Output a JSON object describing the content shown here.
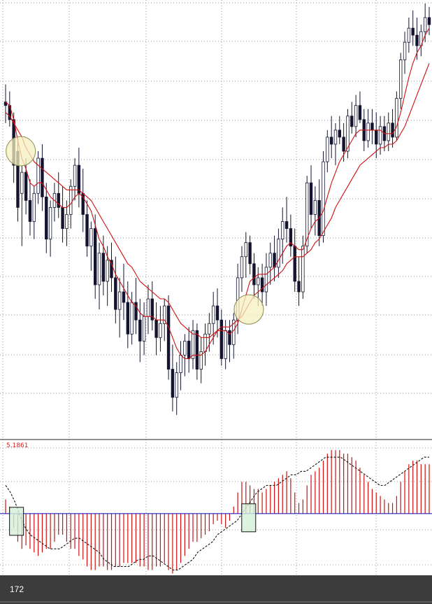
{
  "chart_data": [
    {
      "type": "candlestick",
      "panel": "price",
      "grid": true,
      "ylim": [
        0,
        125
      ],
      "colors": {
        "up": "#ffffff",
        "down": "#141430",
        "outline": "#141430",
        "ma_fast": "#d01010",
        "ma_slow": "#d01010",
        "highlight_fill": "#f6f0c0",
        "highlight_stroke": "#8a8a50"
      },
      "candles": [
        [
          96,
          101,
          90,
          95
        ],
        [
          95,
          99,
          89,
          91
        ],
        [
          91,
          93,
          73,
          78
        ],
        [
          82,
          86,
          62,
          66
        ],
        [
          70,
          78,
          55,
          76
        ],
        [
          76,
          80,
          64,
          68
        ],
        [
          68,
          74,
          58,
          62
        ],
        [
          62,
          72,
          57,
          70
        ],
        [
          70,
          82,
          67,
          80
        ],
        [
          80,
          84,
          65,
          69
        ],
        [
          69,
          73,
          53,
          57
        ],
        [
          57,
          68,
          52,
          66
        ],
        [
          66,
          73,
          62,
          70
        ],
        [
          70,
          76,
          63,
          66
        ],
        [
          66,
          72,
          56,
          60
        ],
        [
          60,
          68,
          55,
          64
        ],
        [
          64,
          74,
          60,
          72
        ],
        [
          72,
          80,
          68,
          78
        ],
        [
          78,
          83,
          66,
          70
        ],
        [
          70,
          77,
          59,
          64
        ],
        [
          64,
          68,
          52,
          55
        ],
        [
          55,
          62,
          48,
          60
        ],
        [
          60,
          64,
          40,
          44
        ],
        [
          44,
          56,
          37,
          53
        ],
        [
          53,
          58,
          41,
          45
        ],
        [
          45,
          55,
          38,
          51
        ],
        [
          51,
          56,
          42,
          46
        ],
        [
          46,
          52,
          33,
          37
        ],
        [
          37,
          46,
          29,
          42
        ],
        [
          42,
          50,
          34,
          39
        ],
        [
          39,
          45,
          26,
          30
        ],
        [
          30,
          42,
          27,
          39
        ],
        [
          39,
          46,
          30,
          34
        ],
        [
          34,
          40,
          22,
          28
        ],
        [
          28,
          39,
          24,
          35
        ],
        [
          35,
          44,
          30,
          40
        ],
        [
          40,
          45,
          31,
          34
        ],
        [
          34,
          39,
          24,
          29
        ],
        [
          29,
          38,
          25,
          33
        ],
        [
          33,
          40,
          28,
          38
        ],
        [
          38,
          41,
          17,
          20
        ],
        [
          20,
          27,
          8,
          12
        ],
        [
          12,
          22,
          7,
          19
        ],
        [
          19,
          28,
          14,
          24
        ],
        [
          24,
          30,
          18,
          28
        ],
        [
          28,
          32,
          19,
          23
        ],
        [
          23,
          34,
          20,
          31
        ],
        [
          31,
          33,
          17,
          20
        ],
        [
          20,
          29,
          16,
          25
        ],
        [
          25,
          33,
          21,
          30
        ],
        [
          30,
          36,
          25,
          33
        ],
        [
          33,
          42,
          27,
          38
        ],
        [
          38,
          43,
          29,
          34
        ],
        [
          34,
          37,
          21,
          23
        ],
        [
          23,
          34,
          20,
          31
        ],
        [
          31,
          34,
          22,
          27
        ],
        [
          27,
          36,
          23,
          34
        ],
        [
          34,
          50,
          30,
          46
        ],
        [
          46,
          55,
          42,
          52
        ],
        [
          52,
          59,
          46,
          56
        ],
        [
          56,
          58,
          47,
          50
        ],
        [
          50,
          53,
          40,
          44
        ],
        [
          44,
          49,
          38,
          46
        ],
        [
          46,
          50,
          38,
          42
        ],
        [
          42,
          53,
          38,
          49
        ],
        [
          49,
          56,
          44,
          53
        ],
        [
          53,
          58,
          45,
          49
        ],
        [
          49,
          60,
          46,
          57
        ],
        [
          57,
          66,
          50,
          62
        ],
        [
          62,
          69,
          56,
          60
        ],
        [
          60,
          64,
          52,
          55
        ],
        [
          55,
          60,
          42,
          45
        ],
        [
          45,
          52,
          38,
          42
        ],
        [
          42,
          58,
          40,
          55
        ],
        [
          55,
          75,
          53,
          73
        ],
        [
          73,
          78,
          60,
          64
        ],
        [
          64,
          72,
          58,
          68
        ],
        [
          68,
          74,
          55,
          58
        ],
        [
          58,
          82,
          56,
          79
        ],
        [
          79,
          88,
          76,
          86
        ],
        [
          86,
          92,
          80,
          84
        ],
        [
          84,
          90,
          78,
          88
        ],
        [
          88,
          92,
          84,
          86
        ],
        [
          86,
          90,
          79,
          82
        ],
        [
          82,
          94,
          80,
          92
        ],
        [
          92,
          96,
          87,
          89
        ],
        [
          89,
          98,
          86,
          95
        ],
        [
          95,
          99,
          90,
          91
        ],
        [
          91,
          94,
          82,
          85
        ],
        [
          85,
          94,
          83,
          90
        ],
        [
          90,
          94,
          84,
          88
        ],
        [
          88,
          93,
          80,
          84
        ],
        [
          84,
          92,
          81,
          89
        ],
        [
          89,
          92,
          82,
          85
        ],
        [
          85,
          93,
          82,
          90
        ],
        [
          90,
          94,
          83,
          86
        ],
        [
          86,
          99,
          85,
          97
        ],
        [
          97,
          110,
          94,
          108
        ],
        [
          108,
          116,
          104,
          113
        ],
        [
          113,
          120,
          110,
          117
        ],
        [
          117,
          122,
          112,
          115
        ],
        [
          115,
          120,
          108,
          112
        ],
        [
          112,
          118,
          109,
          116
        ],
        [
          116,
          124,
          113,
          120
        ],
        [
          120,
          123,
          115,
          118
        ]
      ],
      "ma_fast": [
        96,
        95,
        91,
        85,
        80,
        77,
        73,
        72,
        73,
        73,
        71,
        69,
        68,
        67,
        66,
        66,
        67,
        69,
        70,
        69,
        67,
        65,
        61,
        57,
        55,
        52,
        50,
        47,
        45,
        43,
        41,
        39,
        38,
        36,
        35,
        35,
        35,
        34,
        34,
        34,
        32,
        29,
        26,
        24,
        23,
        23,
        24,
        24,
        24,
        25,
        27,
        29,
        31,
        31,
        31,
        30,
        31,
        33,
        37,
        41,
        45,
        46,
        47,
        47,
        47,
        48,
        49,
        51,
        53,
        55,
        56,
        55,
        54,
        54,
        57,
        60,
        62,
        63,
        65,
        69,
        73,
        76,
        79,
        81,
        83,
        85,
        87,
        88,
        88,
        88,
        88,
        88,
        88,
        87,
        87,
        87,
        89,
        93,
        98,
        103,
        107,
        110,
        112,
        115,
        117
      ],
      "ma_slow": [
        93,
        92,
        90,
        88,
        86,
        83,
        81,
        79,
        78,
        77,
        76,
        75,
        74,
        73,
        72,
        71,
        71,
        71,
        71,
        70,
        69,
        68,
        66,
        64,
        62,
        60,
        58,
        56,
        54,
        52,
        50,
        49,
        47,
        45,
        44,
        43,
        42,
        41,
        40,
        40,
        39,
        37,
        35,
        33,
        32,
        31,
        30,
        30,
        29,
        29,
        29,
        30,
        31,
        32,
        32,
        32,
        33,
        34,
        35,
        37,
        39,
        41,
        42,
        43,
        44,
        45,
        46,
        47,
        48,
        50,
        51,
        52,
        52,
        52,
        53,
        54,
        56,
        57,
        59,
        61,
        63,
        66,
        68,
        70,
        72,
        74,
        76,
        78,
        79,
        80,
        81,
        82,
        83,
        83,
        84,
        84,
        85,
        87,
        89,
        92,
        95,
        98,
        101,
        104,
        107
      ],
      "highlights": [
        {
          "shape": "circle",
          "x": 2,
          "y": 82
        },
        {
          "shape": "circle",
          "x": 58,
          "y": 37
        }
      ]
    },
    {
      "type": "histogram",
      "panel": "indicator",
      "grid": true,
      "label": "5.1861",
      "zero": 0,
      "ylim": [
        -1.75,
        2.1
      ],
      "colors": {
        "bars": "#d01010",
        "signal": "#111111",
        "zero_line": "#2020c0",
        "highlight_fill": "#d4f0d8",
        "highlight_stroke": "#111111"
      },
      "histogram": [
        0.4,
        0.2,
        -0.4,
        -0.8,
        -1.0,
        -0.9,
        -1.0,
        -1.1,
        -1.2,
        -1.1,
        -1.0,
        -1.0,
        -0.8,
        -0.6,
        -0.6,
        -0.8,
        -1.0,
        -1.0,
        -1.2,
        -1.3,
        -1.5,
        -1.6,
        -1.6,
        -1.5,
        -1.5,
        -1.6,
        -1.6,
        -1.5,
        -1.5,
        -1.4,
        -1.4,
        -1.4,
        -1.4,
        -1.5,
        -1.5,
        -1.6,
        -1.6,
        -1.5,
        -1.5,
        -1.4,
        -1.6,
        -1.7,
        -1.6,
        -1.4,
        -1.2,
        -1.0,
        -0.8,
        -0.8,
        -0.7,
        -0.6,
        -0.5,
        -0.3,
        -0.2,
        -0.3,
        -0.4,
        -0.2,
        0.2,
        0.6,
        0.9,
        0.9,
        0.8,
        0.7,
        0.7,
        0.6,
        0.7,
        0.8,
        0.9,
        1.0,
        1.1,
        1.2,
        1.0,
        0.6,
        0.3,
        0.4,
        0.8,
        1.1,
        1.2,
        1.3,
        1.5,
        1.7,
        1.8,
        1.8,
        1.8,
        1.7,
        1.7,
        1.6,
        1.5,
        1.3,
        1.1,
        0.9,
        0.7,
        0.6,
        0.5,
        0.4,
        0.3,
        0.3,
        0.5,
        0.9,
        1.2,
        1.4,
        1.5,
        1.5,
        1.4,
        1.4,
        1.4
      ],
      "signal": [
        0.8,
        0.6,
        0.3,
        -0.1,
        -0.4,
        -0.6,
        -0.7,
        -0.8,
        -0.9,
        -1.0,
        -1.0,
        -1.0,
        -0.9,
        -0.8,
        -0.7,
        -0.7,
        -0.8,
        -0.9,
        -1.0,
        -1.1,
        -1.3,
        -1.4,
        -1.5,
        -1.5,
        -1.5,
        -1.5,
        -1.4,
        -1.3,
        -1.3,
        -1.2,
        -1.2,
        -1.3,
        -1.4,
        -1.5,
        -1.6,
        -1.6,
        -1.5,
        -1.4,
        -1.3,
        -1.1,
        -1.0,
        -0.9,
        -0.8,
        -0.6,
        -0.5,
        -0.4,
        -0.3,
        -0.2,
        0.0,
        0.2,
        0.4,
        0.6,
        0.7,
        0.8,
        0.8,
        0.8,
        0.9,
        1.0,
        1.1,
        1.1,
        1.2,
        1.2,
        1.3,
        1.4,
        1.5,
        1.6,
        1.6,
        1.6,
        1.6,
        1.5,
        1.4,
        1.3,
        1.2,
        1.1,
        1.0,
        0.9,
        0.8,
        0.8,
        0.9,
        1.0,
        1.1,
        1.2,
        1.3,
        1.4,
        1.5,
        1.6,
        1.6
      ],
      "highlights": [
        {
          "shape": "box",
          "x": 2,
          "y": -0.1
        },
        {
          "shape": "box",
          "x": 59,
          "y": 0
        }
      ]
    }
  ],
  "footer": {
    "value": "172"
  }
}
